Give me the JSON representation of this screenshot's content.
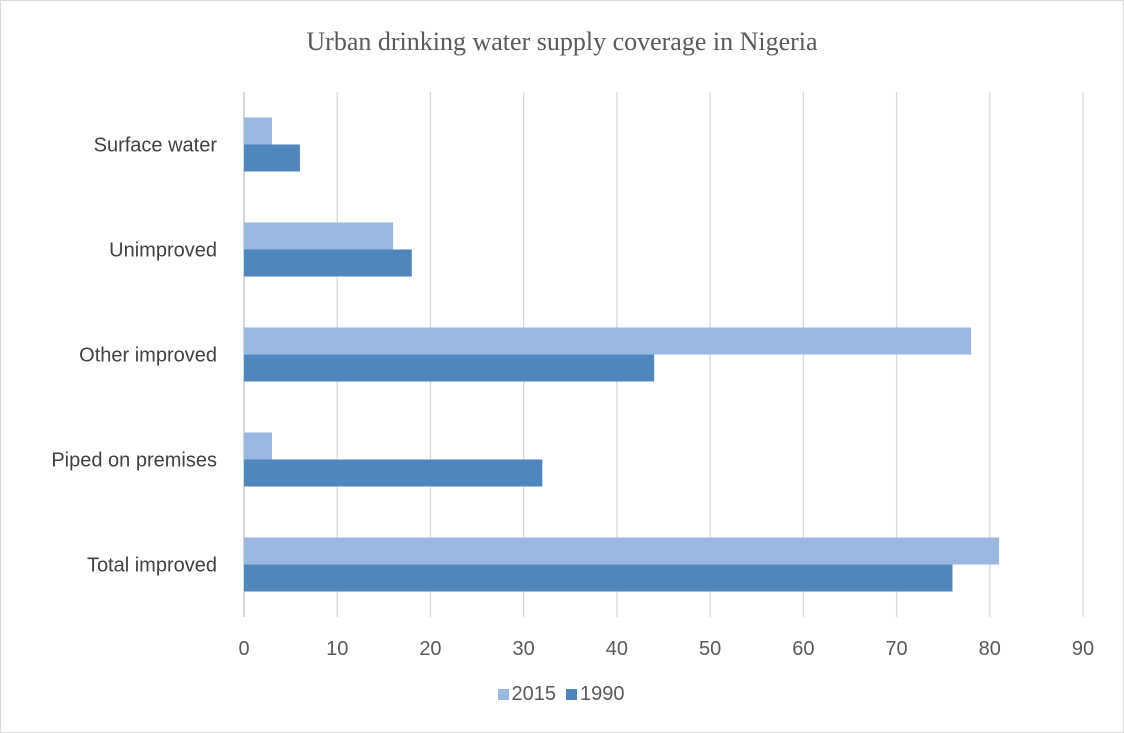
{
  "chart_data": {
    "type": "bar",
    "orientation": "horizontal",
    "title": "Urban drinking water supply coverage in Nigeria",
    "xlabel": "",
    "ylabel": "",
    "categories": [
      "Total improved",
      "Piped on premises",
      "Other improved",
      "Unimproved",
      "Surface water"
    ],
    "series": [
      {
        "name": "2015",
        "color": "#9ab8df",
        "values": [
          81,
          3,
          78,
          16,
          3
        ]
      },
      {
        "name": "1990",
        "color": "#4e86bd",
        "values": [
          76,
          32,
          44,
          18,
          6
        ]
      }
    ],
    "xlim": [
      0,
      90
    ],
    "ticks": [
      0,
      10,
      20,
      30,
      40,
      50,
      60,
      70,
      80,
      90
    ],
    "grid": true,
    "legend_position": "bottom"
  }
}
